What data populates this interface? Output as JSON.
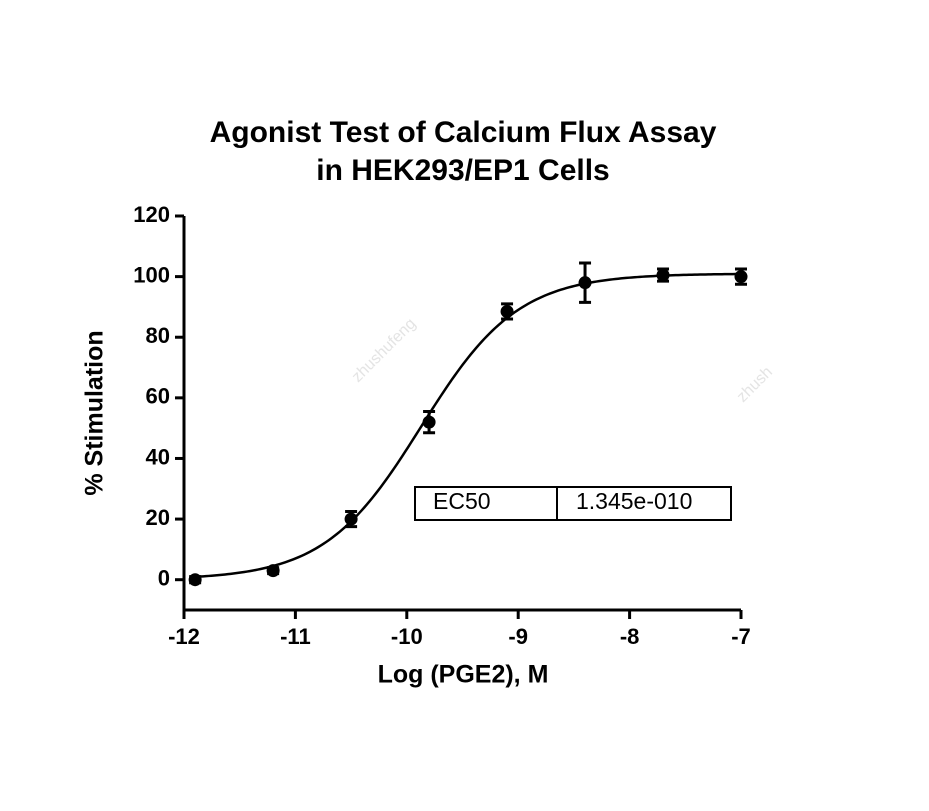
{
  "chart_data": {
    "type": "scatter",
    "title": [
      "Agonist Test of Calcium Flux Assay",
      "in HEK293/EP1 Cells"
    ],
    "x_label": "Log (PGE2), M",
    "y_label": "% Stimulation",
    "x": [
      -11.9,
      -11.2,
      -10.5,
      -9.8,
      -9.1,
      -8.4,
      -7.7,
      -7
    ],
    "series": [
      {
        "color": "#000000",
        "values": [
          0,
          3,
          20,
          52,
          88.5,
          98,
          100.5,
          100
        ],
        "errors": [
          1,
          1,
          2.5,
          3.5,
          2.5,
          6.5,
          2,
          2.5
        ]
      }
    ],
    "fit": {
      "bottom": 0,
      "top": 101,
      "hill_slope": 1
    },
    "ec50": {
      "label": "EC50",
      "value": 1.345e-10,
      "value_label": "1.345e-010"
    },
    "xlim": [
      -12,
      -7
    ],
    "xticks": [
      -12,
      -11,
      -10,
      -9,
      -8,
      -7
    ],
    "ylim": [
      -10,
      120
    ],
    "yticks": [
      0,
      20,
      40,
      60,
      80,
      100,
      120
    ],
    "watermarks": [
      "zhushufeng",
      "zhush"
    ]
  }
}
